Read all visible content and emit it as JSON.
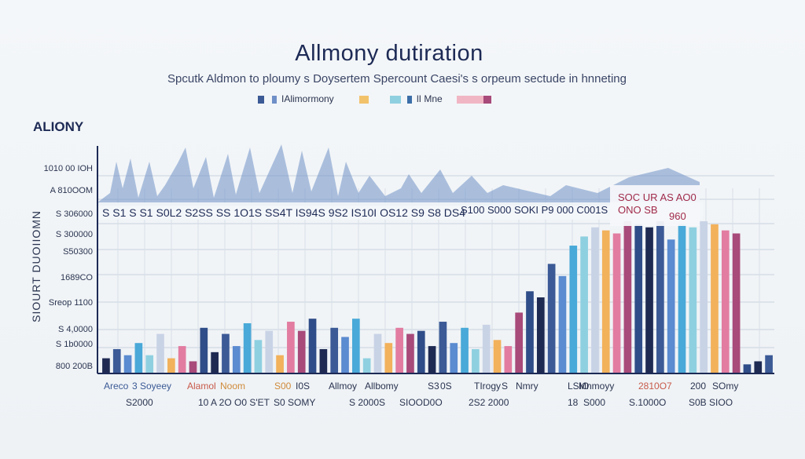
{
  "chart_data": {
    "type": "bar",
    "title": "Allmony dutiration",
    "subtitle": "Spcutk Aldmon to ploumy s Doysertem  Spercount Caesi's s orpeum sectude in hnneting",
    "legend": [
      {
        "name": "IAlimormony",
        "colors": [
          "#3b5a96",
          "#6f8fc7"
        ]
      },
      {
        "name": "",
        "colors": [
          "#f2c26b"
        ]
      },
      {
        "name": "lI Mne",
        "colors": [
          "#8fd0e0",
          "#3b6ea8"
        ]
      },
      {
        "name": "",
        "colors": [
          "#f1b6c4",
          "#a84a7a"
        ]
      }
    ],
    "ylabel_top": "ALIONY",
    "ylabel_side": "SIOURT DUOIIOMN",
    "y_ticks": [
      "1010 00 IOH",
      "A 810OOM",
      "S 306000",
      "S 300000",
      "S50300",
      "1689CO",
      "Sreop 1100",
      "S 4,0000",
      "S 1b0000",
      "800 200B"
    ],
    "overlay_row1": "S S1  S S1 S0L2 S2SS  SS 1O1S  SS4T  IS94S  9S2 IS10I OS12  S9 S8  DS4",
    "overlay_row2": "S100 S000 SOKI  P9 000  C001S",
    "overlay_right1": "SOC UR AS AO0",
    "overlay_right2": "ONO SB",
    "overlay_right3": "960",
    "values": [
      10,
      16,
      12,
      20,
      12,
      26,
      10,
      18,
      8,
      30,
      14,
      26,
      18,
      33,
      22,
      28,
      12,
      34,
      28,
      36,
      16,
      30,
      24,
      36,
      10,
      26,
      20,
      30,
      26,
      28,
      18,
      34,
      20,
      30,
      16,
      32,
      22,
      18,
      40,
      54,
      50,
      72,
      64,
      84,
      90,
      96,
      94,
      92,
      100,
      98,
      96,
      100,
      88,
      98,
      96,
      100,
      98,
      94,
      92,
      6,
      8,
      12
    ],
    "x_labels_row1": [
      "Areco",
      "3 Soyeey",
      "Alamol",
      "Noom",
      "S00",
      "I0S",
      "Allmoy",
      "Allbomy",
      "S3",
      "0S",
      "TIrogy",
      "S",
      "Nmry",
      "LSIO",
      "Mnmoyy",
      "2810O7",
      "200",
      "SOmy"
    ],
    "x_labels_row2": [
      "S2000",
      "10",
      "A 2O O0 S'ET",
      "S0 SOMY",
      "S 2000S",
      "SIOOD0O",
      "2S2 2000",
      "18",
      "S000",
      "S.1000O",
      "S0B SIOO"
    ]
  }
}
